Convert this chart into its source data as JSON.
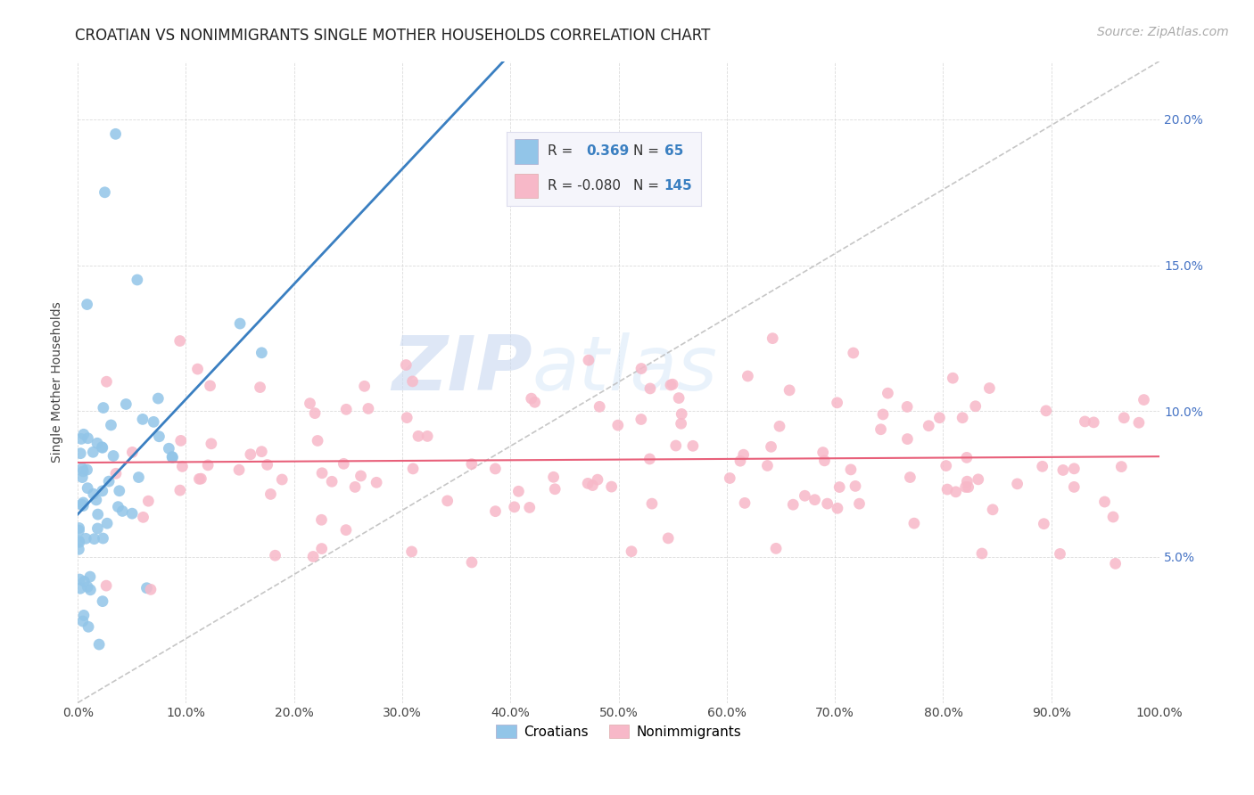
{
  "title": "CROATIAN VS NONIMMIGRANTS SINGLE MOTHER HOUSEHOLDS CORRELATION CHART",
  "source": "Source: ZipAtlas.com",
  "ylabel": "Single Mother Households",
  "xlim": [
    0,
    1.0
  ],
  "ylim": [
    0,
    0.22
  ],
  "xticklabels": [
    "0.0%",
    "10.0%",
    "20.0%",
    "30.0%",
    "40.0%",
    "50.0%",
    "60.0%",
    "70.0%",
    "80.0%",
    "90.0%",
    "100.0%"
  ],
  "right_yticklabels": [
    "",
    "5.0%",
    "10.0%",
    "15.0%",
    "20.0%"
  ],
  "croatian_R": 0.369,
  "croatian_N": 65,
  "nonimm_R": -0.08,
  "nonimm_N": 145,
  "croatian_color": "#92c5e8",
  "nonimm_color": "#f7b8c8",
  "trendline_croatian_color": "#3a7fc1",
  "trendline_nonimm_color": "#e8607a",
  "diagonal_color": "#b8b8b8",
  "background_color": "#ffffff",
  "watermark_zip": "ZIP",
  "watermark_atlas": "atlas",
  "title_fontsize": 12,
  "source_fontsize": 10,
  "legend_r1": "R =",
  "legend_v1": "0.369",
  "legend_n1": "N =",
  "legend_n1v": "65",
  "legend_r2": "R = -0.080",
  "legend_n2": "N =",
  "legend_n2v": "145"
}
